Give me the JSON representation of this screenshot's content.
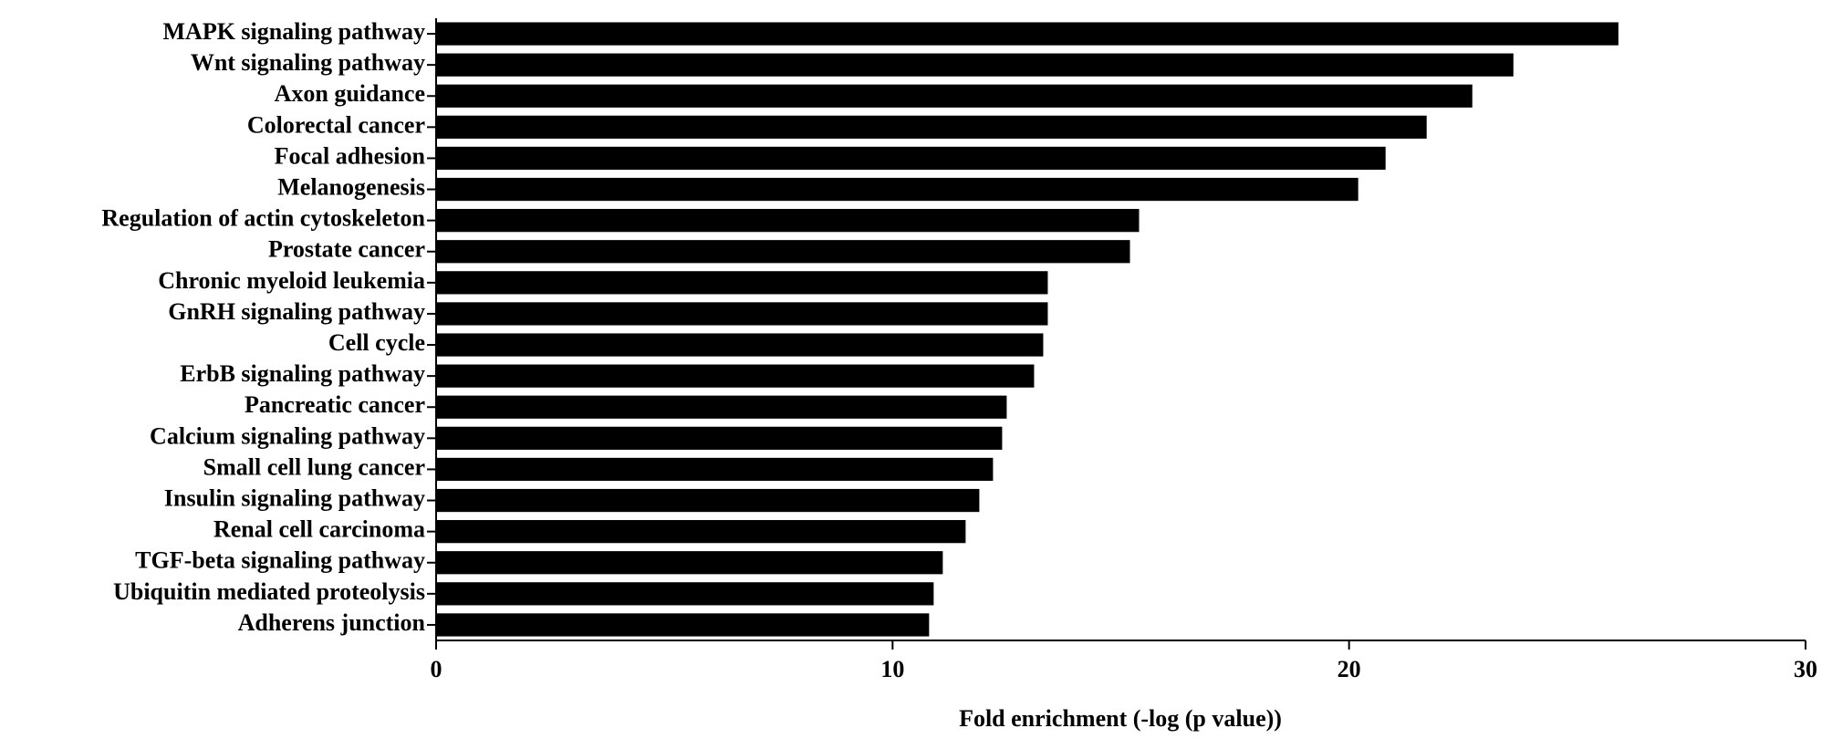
{
  "chart_data": {
    "type": "bar",
    "orientation": "horizontal",
    "x_label": "Fold enrichment (-log (p value))",
    "categories": [
      "MAPK signaling pathway",
      "Wnt signaling pathway",
      "Axon guidance",
      "Colorectal cancer",
      "Focal adhesion",
      "Melanogenesis",
      "Regulation of actin cytoskeleton",
      "Prostate cancer",
      "Chronic myeloid leukemia",
      "GnRH signaling pathway",
      "Cell cycle",
      "ErbB signaling pathway",
      "Pancreatic cancer",
      "Calcium signaling pathway",
      "Small cell lung cancer",
      "Insulin signaling pathway",
      "Renal cell carcinoma",
      "TGF-beta signaling pathway",
      "Ubiquitin mediated proteolysis",
      "Adherens junction"
    ],
    "values": [
      25.9,
      23.6,
      22.7,
      21.7,
      20.8,
      20.2,
      15.4,
      15.2,
      13.4,
      13.4,
      13.3,
      13.1,
      12.5,
      12.4,
      12.2,
      11.9,
      11.6,
      11.1,
      10.9,
      10.8
    ],
    "color": "#000000",
    "xlim": [
      0,
      30
    ],
    "xticks": [
      0,
      10,
      20,
      30
    ]
  }
}
